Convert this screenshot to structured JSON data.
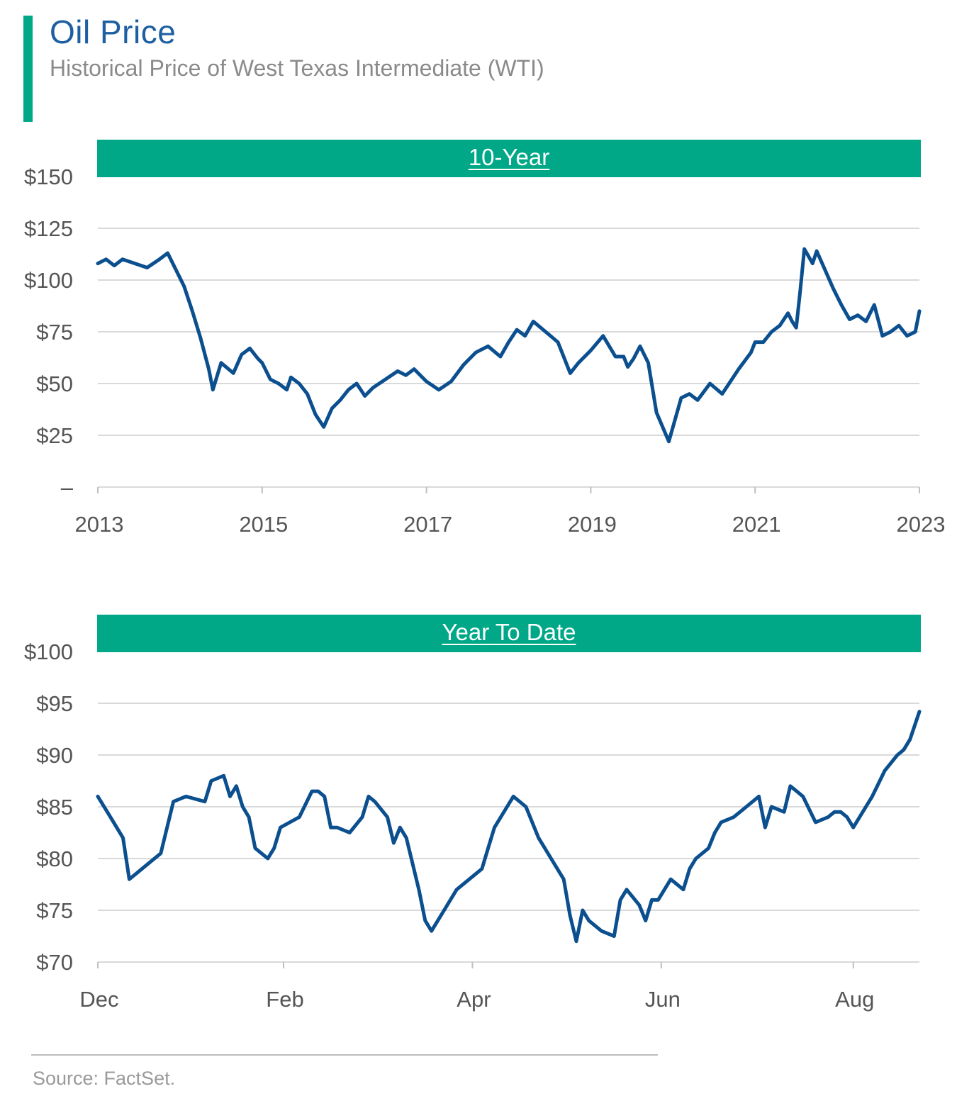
{
  "header": {
    "title": "Oil Price",
    "subtitle": "Historical Price of West Texas Intermediate (WTI)",
    "accent_color": "#00A888",
    "line_color": "#0B4F8F"
  },
  "source": "Source: FactSet.",
  "chart_data": [
    {
      "type": "line",
      "title": "10-Year",
      "xlabel": "",
      "ylabel": "",
      "ylim": [
        0,
        150
      ],
      "xlim": [
        2013,
        2023
      ],
      "yticks": [
        0,
        25,
        50,
        75,
        100,
        125,
        150
      ],
      "ytick_labels": [
        "–",
        "$25",
        "$50",
        "$75",
        "$100",
        "$125",
        "$150"
      ],
      "xticks": [
        2013,
        2015,
        2017,
        2019,
        2021,
        2023
      ],
      "xtick_labels": [
        "2013",
        "2015",
        "2017",
        "2019",
        "2021",
        "2023"
      ],
      "grid": true,
      "series": [
        {
          "name": "WTI",
          "x": [
            2013.0,
            2013.1,
            2013.2,
            2013.3,
            2013.45,
            2013.6,
            2013.75,
            2013.85,
            2013.95,
            2014.05,
            2014.15,
            2014.25,
            2014.35,
            2014.4,
            2014.5,
            2014.65,
            2014.75,
            2014.85,
            2014.95,
            2015.0,
            2015.1,
            2015.2,
            2015.3,
            2015.35,
            2015.45,
            2015.55,
            2015.65,
            2015.75,
            2015.85,
            2015.95,
            2016.05,
            2016.15,
            2016.25,
            2016.35,
            2016.5,
            2016.65,
            2016.75,
            2016.85,
            2017.0,
            2017.15,
            2017.3,
            2017.45,
            2017.6,
            2017.75,
            2017.9,
            2018.0,
            2018.1,
            2018.2,
            2018.3,
            2018.45,
            2018.6,
            2018.75,
            2018.85,
            2019.0,
            2019.15,
            2019.3,
            2019.4,
            2019.45,
            2019.52,
            2019.6,
            2019.7,
            2019.8,
            2019.95,
            2020.1,
            2020.2,
            2020.3,
            2020.45,
            2020.6,
            2020.8,
            2020.95,
            2021.0,
            2021.1,
            2021.2,
            2021.3,
            2021.4,
            2021.45,
            2021.5,
            2021.55,
            2021.6,
            2021.7,
            2021.75,
            2021.85,
            2021.95,
            2022.05,
            2022.15,
            2022.25,
            2022.35,
            2022.45,
            2022.55,
            2022.65,
            2022.75,
            2022.85,
            2022.95,
            2023.0
          ],
          "values": [
            108,
            110,
            107,
            110,
            108,
            106,
            110,
            113,
            105,
            97,
            85,
            72,
            57,
            47,
            60,
            55,
            64,
            67,
            62,
            60,
            52,
            50,
            47,
            53,
            50,
            45,
            35,
            29,
            38,
            42,
            47,
            50,
            44,
            48,
            52,
            56,
            54,
            57,
            51,
            47,
            51,
            59,
            65,
            68,
            63,
            70,
            76,
            73,
            80,
            75,
            70,
            55,
            60,
            66,
            73,
            63,
            63,
            58,
            62,
            68,
            60,
            36,
            22,
            43,
            45,
            42,
            50,
            45,
            57,
            65,
            70,
            70,
            75,
            78,
            84,
            80,
            77,
            95,
            115,
            108,
            114,
            105,
            96,
            88,
            81,
            83,
            80,
            88,
            73,
            75,
            78,
            73,
            75,
            85
          ]
        }
      ]
    },
    {
      "type": "line",
      "title": "Year To Date",
      "xlabel": "",
      "ylabel": "",
      "ylim": [
        70,
        100
      ],
      "xlim": [
        0,
        261
      ],
      "yticks": [
        70,
        75,
        80,
        85,
        90,
        95,
        100
      ],
      "ytick_labels": [
        "$70",
        "$75",
        "$80",
        "$85",
        "$90",
        "$95",
        "$100"
      ],
      "xticks": [
        0,
        59,
        119,
        179,
        240
      ],
      "xtick_labels": [
        "Dec",
        "Feb",
        "Apr",
        "Jun",
        "Aug"
      ],
      "grid": true,
      "series": [
        {
          "name": "WTI",
          "x": [
            0,
            4,
            8,
            10,
            12,
            16,
            20,
            22,
            24,
            28,
            34,
            36,
            40,
            42,
            44,
            46,
            48,
            50,
            54,
            56,
            58,
            64,
            68,
            70,
            72,
            74,
            76,
            80,
            84,
            86,
            88,
            92,
            94,
            96,
            98,
            102,
            104,
            106,
            108,
            110,
            114,
            118,
            122,
            124,
            126,
            130,
            132,
            136,
            140,
            144,
            148,
            150,
            152,
            154,
            156,
            160,
            164,
            166,
            168,
            172,
            174,
            176,
            178,
            182,
            186,
            188,
            190,
            194,
            196,
            198,
            202,
            206,
            210,
            212,
            214,
            218,
            220,
            222,
            224,
            228,
            232,
            234,
            236,
            238,
            240,
            242,
            244,
            246,
            250,
            254,
            256,
            258,
            261
          ],
          "values": [
            86,
            84,
            82,
            78,
            78.5,
            79.5,
            80.5,
            83,
            85.5,
            86,
            85.5,
            87.5,
            88,
            86,
            87,
            85,
            84,
            81,
            80,
            81,
            83,
            84,
            86.5,
            86.5,
            86,
            83,
            83,
            82.5,
            84,
            86,
            85.5,
            84,
            81.5,
            83,
            82,
            77,
            74,
            73,
            74,
            75,
            77,
            78,
            79,
            81,
            83,
            85,
            86,
            85,
            82,
            80,
            78,
            74.5,
            72,
            75,
            74,
            73,
            72.5,
            76,
            77,
            75.5,
            74,
            76,
            76,
            78,
            77,
            79,
            80,
            81,
            82.5,
            83.5,
            84,
            85,
            86,
            83,
            85,
            84.5,
            87,
            86.5,
            86,
            83.5,
            84,
            84.5,
            84.5,
            84,
            83,
            84,
            85,
            86,
            88.5,
            90,
            90.5,
            91.5,
            94.2
          ]
        }
      ]
    }
  ]
}
